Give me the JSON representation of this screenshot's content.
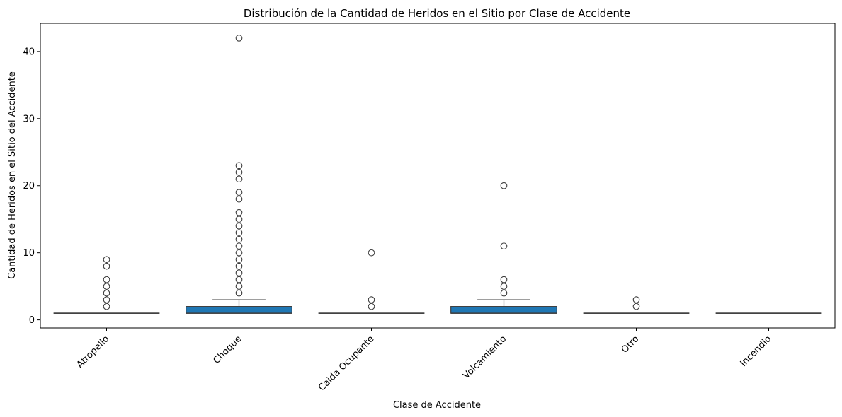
{
  "chart_data": {
    "type": "box",
    "title": "Distribución de la Cantidad de Heridos en el Sitio por Clase de Accidente",
    "xlabel": "Clase de Accidente",
    "ylabel": "Cantidad de Heridos en el Sitio del Accidente",
    "ylim": [
      -1.2,
      44.2
    ],
    "yticks": [
      0,
      10,
      20,
      30,
      40
    ],
    "categories": [
      "Atropello",
      "Choque",
      "Caida Ocupante",
      "Volcamiento",
      "Otro",
      "Incendio"
    ],
    "box_color": "#1f77b4",
    "boxes": [
      {
        "category": "Atropello",
        "q1": 1,
        "median": 1,
        "q3": 1,
        "whisker_low": 1,
        "whisker_high": 1,
        "outliers": [
          2,
          3,
          4,
          5,
          6,
          8,
          9
        ]
      },
      {
        "category": "Choque",
        "q1": 1,
        "median": 1,
        "q3": 2,
        "whisker_low": 1,
        "whisker_high": 3,
        "outliers": [
          4,
          5,
          6,
          7,
          8,
          9,
          10,
          11,
          12,
          13,
          14,
          15,
          16,
          18,
          19,
          21,
          22,
          23,
          42
        ]
      },
      {
        "category": "Caida Ocupante",
        "q1": 1,
        "median": 1,
        "q3": 1,
        "whisker_low": 1,
        "whisker_high": 1,
        "outliers": [
          2,
          3,
          10
        ]
      },
      {
        "category": "Volcamiento",
        "q1": 1,
        "median": 1,
        "q3": 2,
        "whisker_low": 1,
        "whisker_high": 3,
        "outliers": [
          4,
          5,
          6,
          11,
          20
        ]
      },
      {
        "category": "Otro",
        "q1": 1,
        "median": 1,
        "q3": 1,
        "whisker_low": 1,
        "whisker_high": 1,
        "outliers": [
          2,
          3
        ]
      },
      {
        "category": "Incendio",
        "q1": 1,
        "median": 1,
        "q3": 1,
        "whisker_low": 1,
        "whisker_high": 1,
        "outliers": []
      }
    ]
  }
}
